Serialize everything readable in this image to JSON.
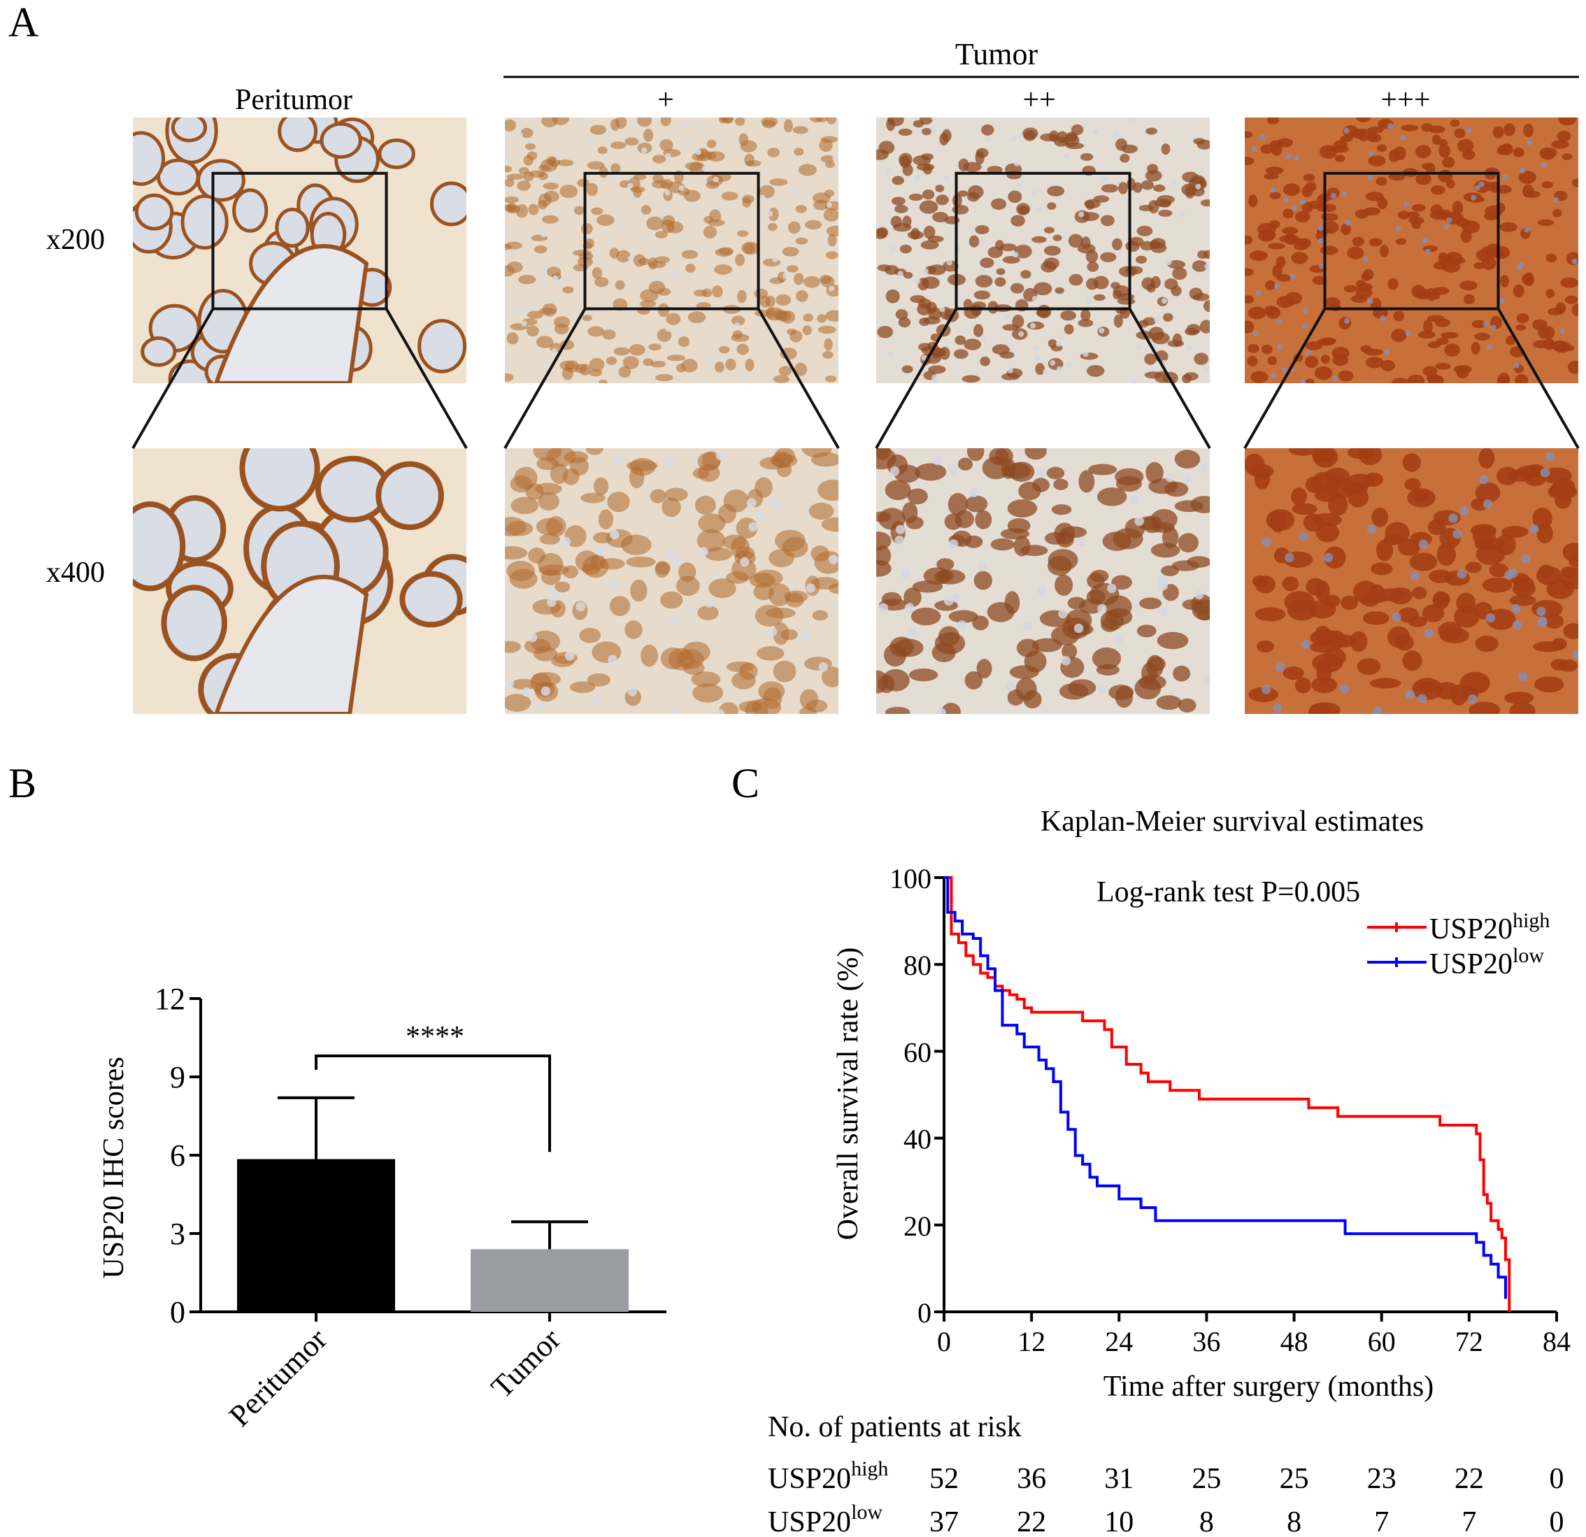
{
  "panels": {
    "A": {
      "letter": "A",
      "group_label": "Tumor",
      "column_labels": [
        "Peritumor",
        "+",
        "++",
        "+++"
      ],
      "row_labels": [
        "x200",
        "x400"
      ],
      "tile_colors": {
        "peritumor": {
          "base": "#efe3d0",
          "stain": "#9a5220",
          "lumen": "#d9dde6"
        },
        "plus": {
          "base": "#e7dccb",
          "stain": "#b06a2c",
          "lumen": "#d8dde5"
        },
        "plusplus": {
          "base": "#e4ddd4",
          "stain": "#8e4a22",
          "lumen": "#d3d8e2"
        },
        "plusplusplus": {
          "base": "#c8703a",
          "stain": "#a33e14",
          "lumen": "#8a8fb0"
        }
      }
    },
    "B": {
      "letter": "B",
      "significance": "****",
      "chart_data": {
        "type": "bar",
        "categories": [
          "Peritumor",
          "Tumor"
        ],
        "values": [
          5.85,
          2.4
        ],
        "errors": [
          2.35,
          1.05
        ],
        "colors": [
          "#000000",
          "#9c9ca4"
        ],
        "ylabel": "USP20 IHC scores",
        "ylim": [
          0,
          12
        ],
        "yticks": [
          0,
          3,
          6,
          9,
          12
        ]
      }
    },
    "C": {
      "letter": "C",
      "chart_data": {
        "type": "line",
        "title": "Kaplan-Meier survival estimates",
        "annotation": "Log-rank test P=0.005",
        "xlabel": "Time after surgery (months)",
        "ylabel": "Overall survival rate (%)",
        "xlim": [
          0,
          84
        ],
        "ylim": [
          0,
          100
        ],
        "xticks": [
          0,
          12,
          24,
          36,
          48,
          60,
          72,
          84
        ],
        "yticks": [
          0,
          20,
          40,
          60,
          80,
          100
        ],
        "series": [
          {
            "name": "USP20",
            "superscript": "high",
            "color": "#ff0000",
            "points": [
              [
                0,
                100
              ],
              [
                1,
                87
              ],
              [
                2,
                85
              ],
              [
                3,
                82
              ],
              [
                4,
                80
              ],
              [
                5,
                78
              ],
              [
                6,
                77
              ],
              [
                7,
                75
              ],
              [
                8,
                74
              ],
              [
                9,
                73
              ],
              [
                10,
                72
              ],
              [
                11,
                70
              ],
              [
                12,
                69
              ],
              [
                18,
                69
              ],
              [
                19,
                67
              ],
              [
                21,
                67
              ],
              [
                22,
                65
              ],
              [
                23,
                61
              ],
              [
                24,
                61
              ],
              [
                25,
                57
              ],
              [
                26,
                57
              ],
              [
                27,
                55
              ],
              [
                28,
                53
              ],
              [
                30,
                53
              ],
              [
                31,
                51
              ],
              [
                34,
                51
              ],
              [
                35,
                49
              ],
              [
                49,
                49
              ],
              [
                50,
                47
              ],
              [
                53,
                47
              ],
              [
                54,
                45
              ],
              [
                67,
                45
              ],
              [
                68,
                43
              ],
              [
                72,
                43
              ],
              [
                73,
                41
              ],
              [
                73.5,
                35
              ],
              [
                74,
                27
              ],
              [
                74.5,
                25
              ],
              [
                75,
                21
              ],
              [
                76,
                19
              ],
              [
                76.5,
                17
              ],
              [
                77,
                12
              ],
              [
                77.5,
                0
              ]
            ]
          },
          {
            "name": "USP20",
            "superscript": "low",
            "color": "#0000ff",
            "points": [
              [
                0,
                100
              ],
              [
                0.5,
                92
              ],
              [
                1.5,
                90
              ],
              [
                2.5,
                87
              ],
              [
                4,
                86
              ],
              [
                5,
                82
              ],
              [
                6,
                79
              ],
              [
                7,
                74
              ],
              [
                8,
                66
              ],
              [
                10,
                64
              ],
              [
                11,
                61
              ],
              [
                12,
                61
              ],
              [
                13,
                58
              ],
              [
                14,
                56
              ],
              [
                15,
                53
              ],
              [
                16,
                46
              ],
              [
                17,
                42
              ],
              [
                18,
                36
              ],
              [
                19,
                34
              ],
              [
                20,
                31
              ],
              [
                21,
                29
              ],
              [
                23,
                29
              ],
              [
                24,
                26
              ],
              [
                26,
                26
              ],
              [
                27,
                24
              ],
              [
                28,
                24
              ],
              [
                29,
                21
              ],
              [
                54,
                21
              ],
              [
                55,
                18
              ],
              [
                72,
                18
              ],
              [
                73,
                16
              ],
              [
                74,
                13
              ],
              [
                75,
                11
              ],
              [
                76,
                8
              ],
              [
                77,
                3
              ]
            ]
          }
        ],
        "risk_table": {
          "title": "No. of patients at risk",
          "rows": [
            {
              "name": "USP20",
              "superscript": "high",
              "counts": [
                52,
                36,
                31,
                25,
                25,
                23,
                22,
                0
              ]
            },
            {
              "name": "USP20",
              "superscript": "low",
              "counts": [
                37,
                22,
                10,
                8,
                8,
                7,
                7,
                0
              ]
            }
          ]
        }
      }
    }
  }
}
